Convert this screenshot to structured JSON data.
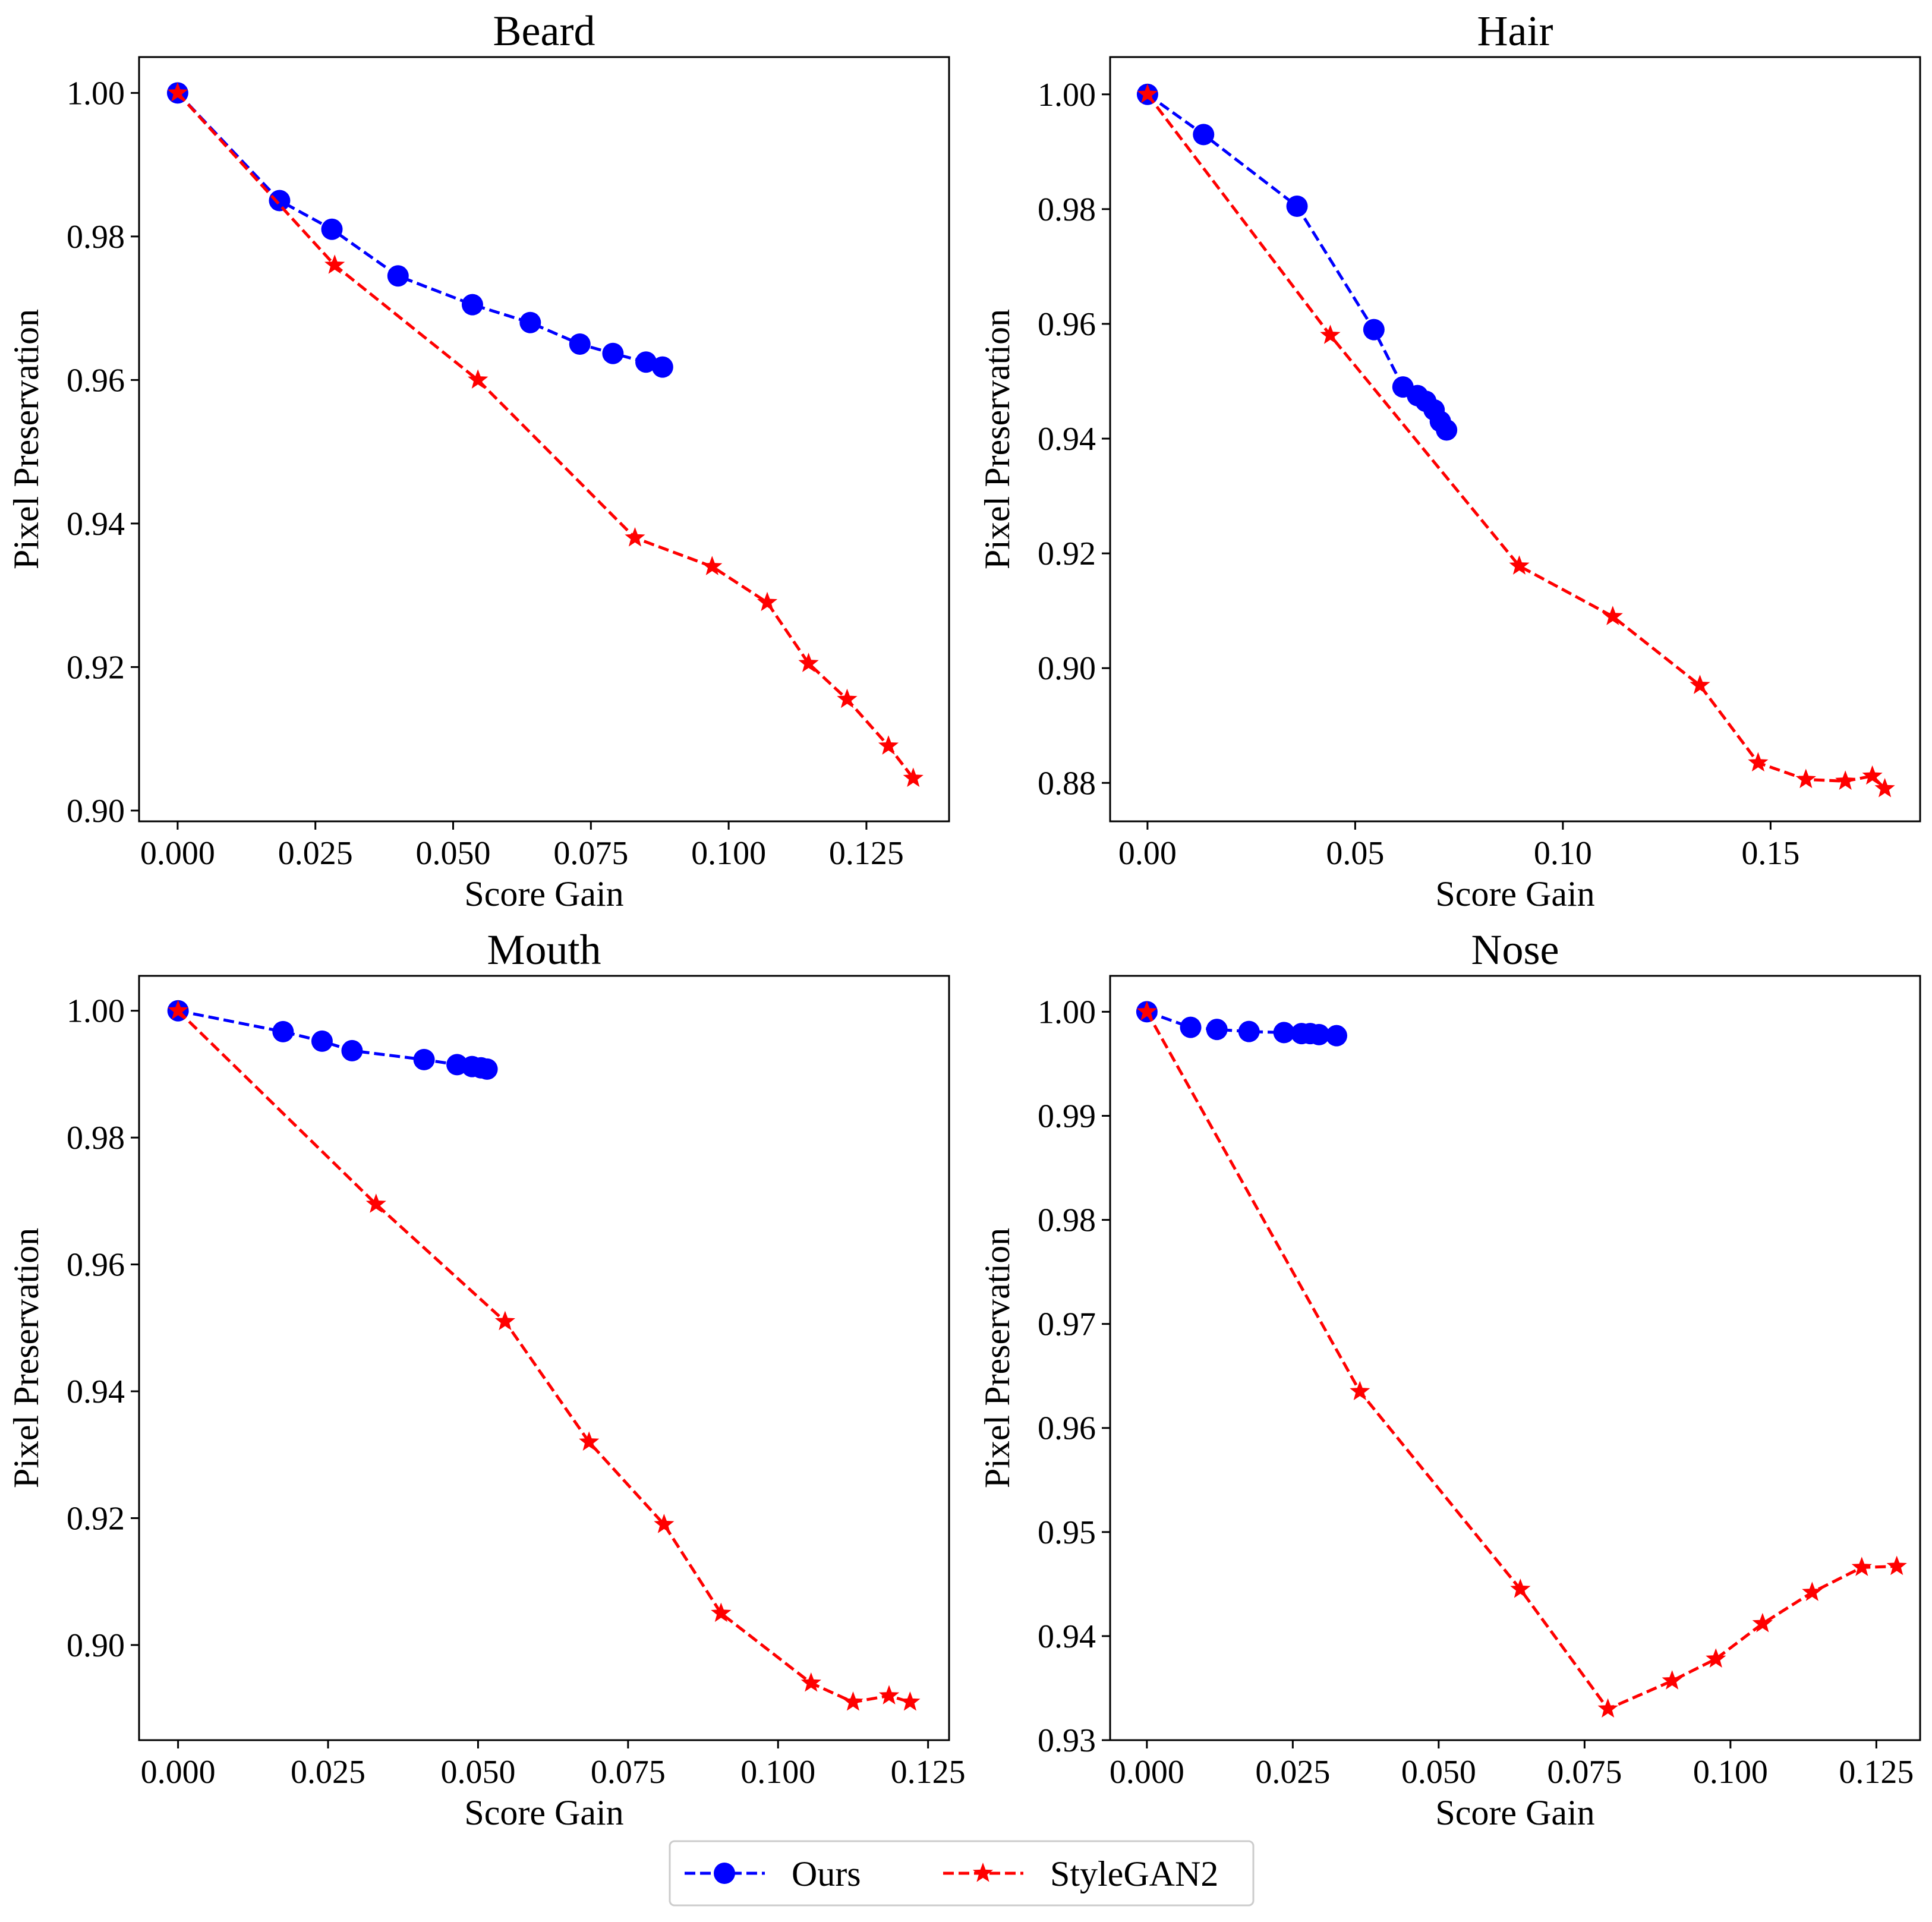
{
  "legend": {
    "items": [
      {
        "label": "Ours",
        "color": "#0000ff",
        "marker": "circle"
      },
      {
        "label": "StyleGAN2",
        "color": "#ff0000",
        "marker": "star"
      }
    ],
    "placement": "bottom-center"
  },
  "chart_data": [
    {
      "type": "line",
      "title": "Beard",
      "xlabel": "Score Gain",
      "ylabel": "Pixel Preservation",
      "xlim": [
        -0.007,
        0.14
      ],
      "ylim": [
        0.8985,
        1.005
      ],
      "xticks": [
        0.0,
        0.025,
        0.05,
        0.075,
        0.1,
        0.125
      ],
      "xtick_labels": [
        "0.000",
        "0.025",
        "0.050",
        "0.075",
        "0.100",
        "0.125"
      ],
      "yticks": [
        0.9,
        0.92,
        0.94,
        0.96,
        0.98,
        1.0
      ],
      "ytick_labels": [
        "0.90",
        "0.92",
        "0.94",
        "0.96",
        "0.98",
        "1.00"
      ],
      "series": [
        {
          "name": "Ours",
          "color": "#0000ff",
          "marker": "circle",
          "x": [
            0.0,
            0.0185,
            0.028,
            0.04,
            0.0535,
            0.064,
            0.073,
            0.079,
            0.085,
            0.088
          ],
          "y": [
            1.0,
            0.985,
            0.981,
            0.9745,
            0.9705,
            0.968,
            0.965,
            0.9637,
            0.9625,
            0.9618
          ]
        },
        {
          "name": "StyleGAN2",
          "color": "#ff0000",
          "marker": "star",
          "x": [
            0.0,
            0.0285,
            0.0545,
            0.083,
            0.097,
            0.107,
            0.1145,
            0.1215,
            0.129,
            0.1335
          ],
          "y": [
            1.0,
            0.976,
            0.96,
            0.938,
            0.934,
            0.929,
            0.9205,
            0.9155,
            0.909,
            0.9045
          ]
        }
      ]
    },
    {
      "type": "line",
      "title": "Hair",
      "xlabel": "Score Gain",
      "ylabel": "Pixel Preservation",
      "xlim": [
        -0.009,
        0.186
      ],
      "ylim": [
        0.8733,
        1.0065
      ],
      "xticks": [
        0.0,
        0.05,
        0.1,
        0.15
      ],
      "xtick_labels": [
        "0.00",
        "0.05",
        "0.10",
        "0.15"
      ],
      "yticks": [
        0.88,
        0.9,
        0.92,
        0.94,
        0.96,
        0.98,
        1.0
      ],
      "ytick_labels": [
        "0.88",
        "0.90",
        "0.92",
        "0.94",
        "0.96",
        "0.98",
        "1.00"
      ],
      "series": [
        {
          "name": "Ours",
          "color": "#0000ff",
          "marker": "circle",
          "x": [
            0.0,
            0.0135,
            0.036,
            0.0545,
            0.0615,
            0.065,
            0.067,
            0.069,
            0.0705,
            0.072
          ],
          "y": [
            1.0,
            0.993,
            0.9805,
            0.959,
            0.949,
            0.9475,
            0.9465,
            0.945,
            0.943,
            0.9415
          ]
        },
        {
          "name": "StyleGAN2",
          "color": "#ff0000",
          "marker": "star",
          "x": [
            0.0,
            0.044,
            0.0895,
            0.112,
            0.133,
            0.147,
            0.1585,
            0.168,
            0.1745,
            0.1775
          ],
          "y": [
            1.0,
            0.958,
            0.9178,
            0.909,
            0.897,
            0.8835,
            0.8806,
            0.8803,
            0.8812,
            0.879
          ]
        }
      ]
    },
    {
      "type": "line",
      "title": "Mouth",
      "xlabel": "Score Gain",
      "ylabel": "Pixel Preservation",
      "xlim": [
        -0.0065,
        0.1285
      ],
      "ylim": [
        0.885,
        1.0055
      ],
      "xticks": [
        0.0,
        0.025,
        0.05,
        0.075,
        0.1,
        0.125
      ],
      "xtick_labels": [
        "0.000",
        "0.025",
        "0.050",
        "0.075",
        "0.100",
        "0.125"
      ],
      "yticks": [
        0.9,
        0.92,
        0.94,
        0.96,
        0.98,
        1.0
      ],
      "ytick_labels": [
        "0.90",
        "0.92",
        "0.94",
        "0.96",
        "0.98",
        "1.00"
      ],
      "series": [
        {
          "name": "Ours",
          "color": "#0000ff",
          "marker": "circle",
          "x": [
            0.0,
            0.0175,
            0.024,
            0.029,
            0.041,
            0.0465,
            0.049,
            0.0505,
            0.0515
          ],
          "y": [
            1.0,
            0.9967,
            0.9952,
            0.9937,
            0.9923,
            0.9915,
            0.9912,
            0.991,
            0.9908
          ]
        },
        {
          "name": "StyleGAN2",
          "color": "#ff0000",
          "marker": "star",
          "x": [
            0.0,
            0.033,
            0.0545,
            0.0685,
            0.081,
            0.0905,
            0.1055,
            0.1125,
            0.1185,
            0.122
          ],
          "y": [
            1.0,
            0.9695,
            0.951,
            0.932,
            0.919,
            0.905,
            0.894,
            0.891,
            0.892,
            0.891
          ]
        }
      ]
    },
    {
      "type": "line",
      "title": "Nose",
      "xlabel": "Score Gain",
      "ylabel": "Pixel Preservation",
      "xlim": [
        -0.0063,
        0.1325
      ],
      "ylim": [
        0.93,
        1.00345
      ],
      "xticks": [
        0.0,
        0.025,
        0.05,
        0.075,
        0.1,
        0.125
      ],
      "xtick_labels": [
        "0.000",
        "0.025",
        "0.050",
        "0.075",
        "0.100",
        "0.125"
      ],
      "yticks": [
        0.93,
        0.94,
        0.95,
        0.96,
        0.97,
        0.98,
        0.99,
        1.0
      ],
      "ytick_labels": [
        "0.93",
        "0.94",
        "0.95",
        "0.96",
        "0.97",
        "0.98",
        "0.99",
        "1.00"
      ],
      "series": [
        {
          "name": "Ours",
          "color": "#0000ff",
          "marker": "circle",
          "x": [
            0.0,
            0.0075,
            0.012,
            0.0175,
            0.0235,
            0.0265,
            0.028,
            0.0295,
            0.0325
          ],
          "y": [
            1.0,
            0.9985,
            0.9983,
            0.9981,
            0.998,
            0.9979,
            0.9979,
            0.9978,
            0.9977
          ]
        },
        {
          "name": "StyleGAN2",
          "color": "#ff0000",
          "marker": "star",
          "x": [
            0.0,
            0.0365,
            0.064,
            0.079,
            0.09,
            0.0975,
            0.1055,
            0.114,
            0.1225,
            0.1285
          ],
          "y": [
            1.0,
            0.9635,
            0.9445,
            0.933,
            0.9357,
            0.9378,
            0.9412,
            0.9442,
            0.9466,
            0.9467
          ]
        }
      ]
    }
  ]
}
